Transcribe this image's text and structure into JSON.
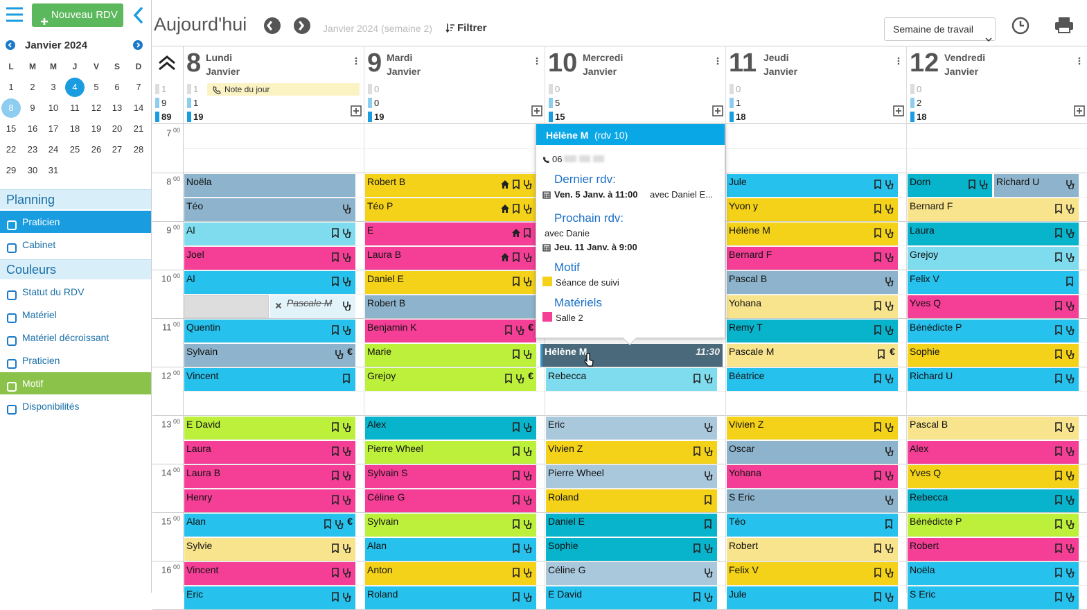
{
  "sidebar": {
    "new_button": "Nouveau RDV",
    "month": "Janvier 2024",
    "weekdays": [
      "L",
      "M",
      "M",
      "J",
      "V",
      "S",
      "D"
    ],
    "days": [
      1,
      2,
      3,
      4,
      5,
      6,
      7,
      8,
      9,
      10,
      11,
      12,
      13,
      14,
      15,
      16,
      17,
      18,
      19,
      20,
      21,
      22,
      23,
      24,
      25,
      26,
      27,
      28,
      29,
      30,
      31
    ],
    "today": 4,
    "selected": 8,
    "sections": [
      {
        "title": "Planning",
        "items": [
          "Praticien",
          "Cabinet"
        ],
        "active": 0
      },
      {
        "title": "Couleurs",
        "items": [
          "Statut du RDV",
          "Matériel",
          "Matériel décroissant",
          "Praticien",
          "Motif",
          "Disponibilités"
        ],
        "active": 4
      }
    ]
  },
  "toolbar": {
    "today": "Aujourd'hui",
    "period": "Janvier 2024 (semaine 2)",
    "filter": "Filtrer",
    "view": "Semaine de travail"
  },
  "totals": [
    1,
    9,
    89
  ],
  "times": [
    {
      "h": "7",
      "m": "00"
    },
    {
      "h": "8",
      "m": "00"
    },
    {
      "h": "9",
      "m": "00"
    },
    {
      "h": "10",
      "m": "00"
    },
    {
      "h": "11",
      "m": "00"
    },
    {
      "h": "12",
      "m": "00"
    },
    {
      "h": "13",
      "m": "00"
    },
    {
      "h": "14",
      "m": "00"
    },
    {
      "h": "15",
      "m": "00"
    },
    {
      "h": "16",
      "m": "00"
    }
  ],
  "colors": {
    "g": "#8db4cc",
    "s": "#a9c8dc",
    "l": "#7fdcee",
    "b": "#26c1ec",
    "p": "#f53f97",
    "y": "#f4d219",
    "w": "#f8e48c",
    "v": "#bdf03a",
    "t": "#08b3cc",
    "x": "#e2f3fa",
    "d": "#4a6a7b"
  },
  "days": [
    {
      "number": 8,
      "name": "Lundi",
      "month": "Janvier",
      "counts": [
        1,
        1,
        19
      ],
      "note": "Note du jour",
      "slots": [
        [
          [
            "Noëla",
            "g"
          ]
        ],
        [
          [
            "Téo",
            "g",
            "s"
          ]
        ],
        [
          [
            "Al",
            "l",
            "b",
            "s"
          ]
        ],
        [
          [
            "Joel",
            "p",
            "b",
            "s"
          ]
        ],
        [
          [
            "Al",
            "b",
            "b",
            "s"
          ]
        ],
        [
          [
            "Pascale M",
            "x",
            "s"
          ]
        ],
        [
          [
            "Quentin",
            "b",
            "b",
            "s"
          ]
        ],
        [
          [
            "Sylvain",
            "g",
            "s",
            "€"
          ]
        ],
        [
          [
            "Vincent",
            "b",
            "b"
          ]
        ],
        [],
        [
          [
            "E David",
            "v",
            "b",
            "s"
          ]
        ],
        [
          [
            "Laura",
            "p",
            "b",
            "s"
          ]
        ],
        [
          [
            "Laura B",
            "p",
            "b",
            "s"
          ]
        ],
        [
          [
            "Henry",
            "p",
            "b",
            "s"
          ]
        ],
        [
          [
            "Alan",
            "b",
            "b",
            "s",
            "€"
          ]
        ],
        [
          [
            "Sylvie",
            "w",
            "b",
            "s"
          ]
        ],
        [
          [
            "Vincent",
            "p",
            "b",
            "s"
          ]
        ],
        [
          [
            "Eric",
            "b",
            "b",
            "s"
          ]
        ]
      ]
    },
    {
      "number": 9,
      "name": "Mardi",
      "month": "Janvier",
      "counts": [
        0,
        0,
        19
      ],
      "slots": [
        [
          [
            "Robert B",
            "y",
            "h",
            "b",
            "s"
          ]
        ],
        [
          [
            "Téo P",
            "y",
            "h",
            "b",
            "s"
          ]
        ],
        [
          [
            "E",
            "p",
            "h",
            "b"
          ]
        ],
        [
          [
            "Laura B",
            "p",
            "h",
            "b",
            "s"
          ]
        ],
        [
          [
            "Daniel E",
            "y",
            "b",
            "s"
          ]
        ],
        [
          [
            "Robert B",
            "g"
          ]
        ],
        [
          [
            "Benjamin K",
            "p",
            "b",
            "s",
            "€"
          ]
        ],
        [
          [
            "Marie",
            "v",
            "b",
            "s"
          ]
        ],
        [
          [
            "Grejoy",
            "v",
            "b",
            "s",
            "€"
          ]
        ],
        [],
        [
          [
            "Alex",
            "t",
            "b",
            "s"
          ]
        ],
        [
          [
            "Pierre Wheel",
            "v",
            "b",
            "s"
          ]
        ],
        [
          [
            "Sylvain S",
            "p",
            "b",
            "s"
          ]
        ],
        [
          [
            "Céline G",
            "p",
            "b",
            "s"
          ]
        ],
        [
          [
            "Sylvain",
            "v",
            "b",
            "s"
          ]
        ],
        [
          [
            "Alan",
            "b",
            "b",
            "s"
          ]
        ],
        [
          [
            "Anton",
            "y",
            "b",
            "s"
          ]
        ],
        [
          [
            "Roland",
            "b",
            "b",
            "s"
          ]
        ]
      ]
    },
    {
      "number": 10,
      "name": "Mercredi",
      "month": "Janvier",
      "counts": [
        0,
        5,
        15
      ],
      "slots": [
        [],
        [],
        [],
        [],
        [],
        [],
        [],
        [
          [
            "Hélène M",
            "d",
            "11:30"
          ]
        ],
        [
          [
            "Rebecca",
            "l",
            "b",
            "s"
          ]
        ],
        [],
        [
          [
            "Eric",
            "s",
            "s"
          ]
        ],
        [
          [
            "Vivien Z",
            "y",
            "b",
            "s"
          ]
        ],
        [
          [
            "Pierre Wheel",
            "s",
            "s"
          ]
        ],
        [
          [
            "Roland",
            "y",
            "b"
          ]
        ],
        [
          [
            "Daniel E",
            "t",
            "b"
          ]
        ],
        [
          [
            "Sophie",
            "t",
            "b",
            "s"
          ]
        ],
        [
          [
            "Céline G",
            "s",
            "s"
          ]
        ],
        [
          [
            "E David",
            "b",
            "b",
            "s"
          ]
        ]
      ]
    },
    {
      "number": 11,
      "name": "Jeudi",
      "month": "Janvier",
      "counts": [
        0,
        1,
        18
      ],
      "slots": [
        [
          [
            "Jule",
            "b",
            "b",
            "s"
          ]
        ],
        [
          [
            "Yvon y",
            "y",
            "b",
            "s"
          ]
        ],
        [
          [
            "Hélène M",
            "y",
            "b",
            "s"
          ]
        ],
        [
          [
            "Bernard F",
            "p",
            "b",
            "s"
          ]
        ],
        [
          [
            "Pascal B",
            "g",
            "s"
          ]
        ],
        [
          [
            "Yohana",
            "w",
            "b",
            "s"
          ]
        ],
        [
          [
            "Remy T",
            "t",
            "b",
            "s"
          ]
        ],
        [
          [
            "Pascale M",
            "w",
            "b",
            "€"
          ]
        ],
        [
          [
            "Béatrice",
            "b",
            "b",
            "s"
          ]
        ],
        [],
        [
          [
            "Vivien Z",
            "y",
            "b",
            "s"
          ]
        ],
        [
          [
            "Oscar",
            "g",
            "s"
          ]
        ],
        [
          [
            "Yohana",
            "p",
            "b",
            "s"
          ]
        ],
        [
          [
            "S Eric",
            "g",
            "s"
          ]
        ],
        [
          [
            "Téo",
            "b",
            "b"
          ]
        ],
        [
          [
            "Robert",
            "w",
            "b",
            "s"
          ]
        ],
        [
          [
            "Felix V",
            "y",
            "b",
            "s"
          ]
        ],
        [
          [
            "Jule",
            "b",
            "b",
            "s"
          ]
        ]
      ]
    },
    {
      "number": 12,
      "name": "Vendredi",
      "month": "Janvier",
      "counts": [
        0,
        2,
        18
      ],
      "slots": [
        [
          [
            "Dorn",
            "t",
            "b",
            "s"
          ],
          [
            "Richard U",
            "g",
            "s"
          ]
        ],
        [
          [
            "Bernard F",
            "w",
            "b",
            "s"
          ]
        ],
        [
          [
            "Laura",
            "t",
            "b",
            "s"
          ]
        ],
        [
          [
            "Grejoy",
            "l",
            "b",
            "s"
          ]
        ],
        [
          [
            "Felix V",
            "b",
            "b"
          ]
        ],
        [
          [
            "Yves Q",
            "p",
            "b",
            "s"
          ]
        ],
        [
          [
            "Bénédicte P",
            "b",
            "b",
            "s"
          ]
        ],
        [
          [
            "Sophie",
            "y",
            "b",
            "s"
          ]
        ],
        [
          [
            "Richard U",
            "b",
            "b",
            "s"
          ]
        ],
        [],
        [
          [
            "Pascal B",
            "w",
            "b",
            "s"
          ]
        ],
        [
          [
            "Alex",
            "p",
            "b",
            "s"
          ]
        ],
        [
          [
            "Yves Q",
            "y",
            "b",
            "s"
          ]
        ],
        [
          [
            "Rebecca",
            "t",
            "b",
            "s"
          ]
        ],
        [
          [
            "Bénédicte P",
            "v",
            "b",
            "s"
          ]
        ],
        [
          [
            "Robert",
            "p",
            "b",
            "s"
          ]
        ],
        [
          [
            "Noëla",
            "b",
            "b",
            "s"
          ]
        ],
        [
          [
            "S Eric",
            "b",
            "b",
            "s"
          ]
        ]
      ]
    }
  ],
  "popup": {
    "name": "Hélène M",
    "ref": "(rdv 10)",
    "phone": "06",
    "last_title": "Dernier rdv:",
    "last_date": "Ven. 5 Janv. à 11:00",
    "last_with": "avec Daniel E...",
    "next_title": "Prochain rdv:",
    "next_with": "avec Danie",
    "next_date": "Jeu. 11 Janv. à 9:00",
    "motif_title": "Motif",
    "motif": "Séance de suivi",
    "materiel_title": "Matériels",
    "materiel": "Salle 2"
  }
}
